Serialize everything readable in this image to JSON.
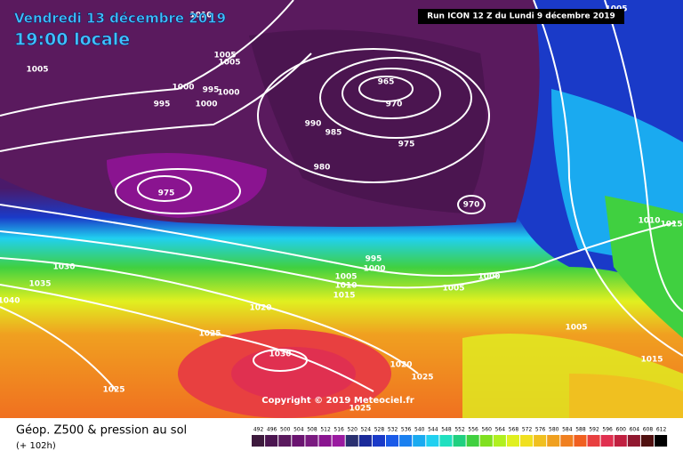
{
  "header": {
    "date": "Vendredi 13 décembre 2019",
    "time": "19:00 locale",
    "run": "Run ICON 12 Z du Lundi 9 décembre 2019"
  },
  "copyright": "Copyright © 2019 Meteociel.fr",
  "footer": {
    "title": "Géop. Z500 & pression au sol",
    "lead": "(+ 102h)"
  },
  "isobar_labels": [
    "1010",
    "1005",
    "1000",
    "995",
    "995",
    "1000",
    "1000",
    "1005",
    "1005",
    "965",
    "970",
    "990",
    "985",
    "975",
    "980",
    "975",
    "970",
    "995",
    "1000",
    "1005",
    "1010",
    "1015",
    "1005",
    "1000",
    "1030",
    "1035",
    "1040",
    "1020",
    "1025",
    "1030",
    "1020",
    "1025",
    "1025",
    "1025",
    "1010",
    "1015",
    "1005",
    "1015",
    "1005"
  ],
  "colorbar": {
    "levels": [
      492,
      496,
      500,
      504,
      508,
      512,
      516,
      520,
      524,
      528,
      532,
      536,
      540,
      544,
      548,
      552,
      556,
      560,
      564,
      568,
      572,
      576,
      580,
      584,
      588,
      592,
      596,
      600,
      604,
      608,
      612
    ],
    "colors": [
      "#3d1a3d",
      "#4b1550",
      "#5a1a5e",
      "#6a1470",
      "#7a1a80",
      "#8a1490",
      "#9a1aa0",
      "#2a3070",
      "#1a2a9a",
      "#1a3ac8",
      "#1a5ae8",
      "#1a80f0",
      "#1aaaf0",
      "#20d0f0",
      "#20e0c0",
      "#20d080",
      "#40d040",
      "#80e020",
      "#b0f020",
      "#e0f020",
      "#f0e020",
      "#f0c020",
      "#f0a020",
      "#f08020",
      "#f06020",
      "#e84040",
      "#e03050",
      "#c02040",
      "#901830",
      "#501010",
      "#000000"
    ]
  }
}
